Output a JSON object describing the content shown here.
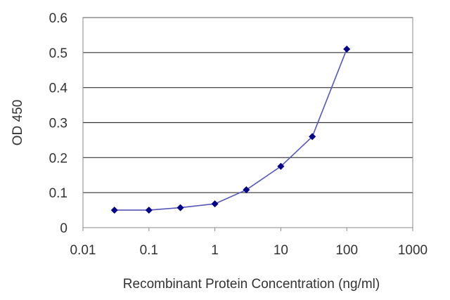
{
  "chart_data": {
    "type": "line",
    "title": "",
    "xlabel": "Recombinant Protein Concentration (ng/ml)",
    "ylabel": "OD 450",
    "x_scale": "log",
    "xlim": [
      0.01,
      1000
    ],
    "ylim": [
      0,
      0.6
    ],
    "x_ticks": [
      "0.01",
      "0.1",
      "1",
      "10",
      "100",
      "1000"
    ],
    "y_ticks": [
      "0",
      "0.1",
      "0.2",
      "0.3",
      "0.4",
      "0.5",
      "0.6"
    ],
    "grid": "horizontal",
    "legend": "none",
    "series": [
      {
        "x": [
          0.03,
          0.1,
          0.3,
          1,
          3,
          10,
          30,
          100
        ],
        "y": [
          0.05,
          0.05,
          0.057,
          0.068,
          0.108,
          0.175,
          0.26,
          0.51
        ],
        "color": "#00008b",
        "line_color": "#5555bb"
      }
    ]
  }
}
